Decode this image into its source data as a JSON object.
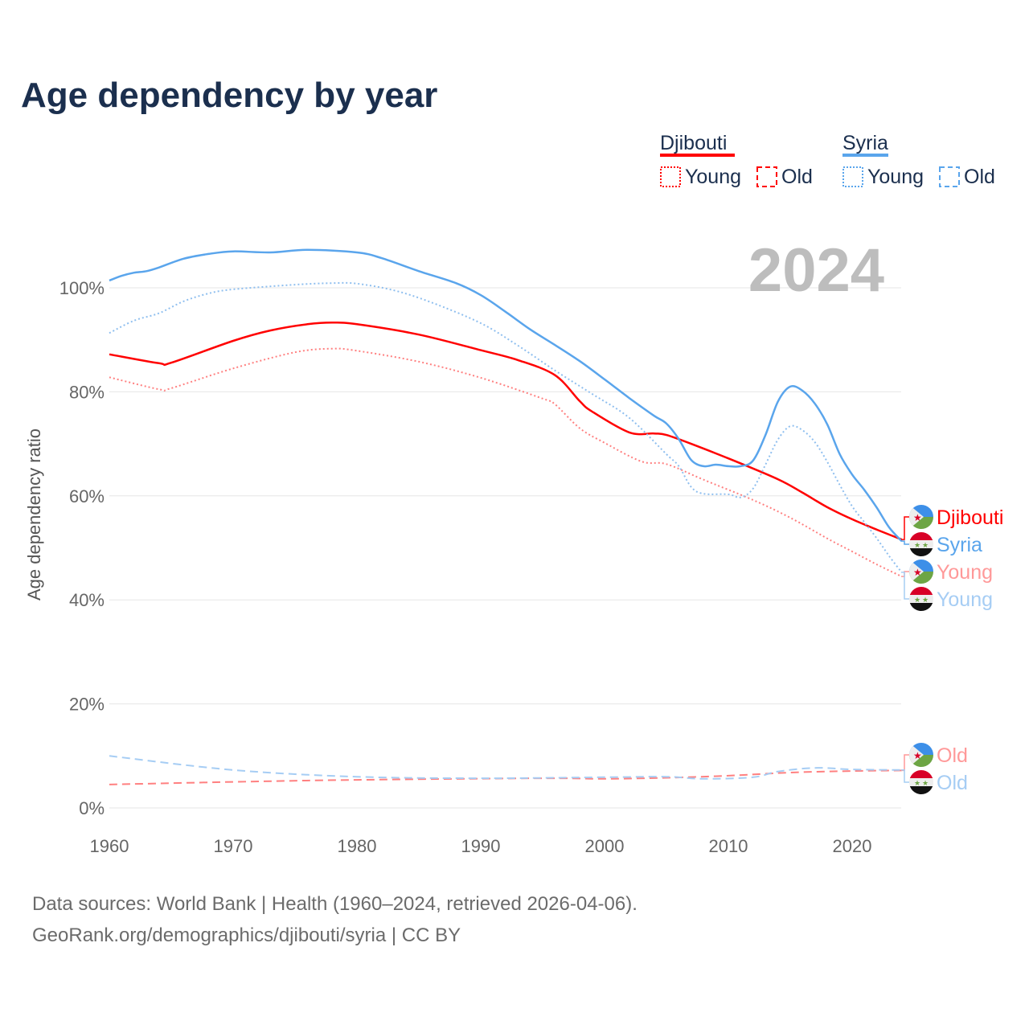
{
  "chart_data": {
    "type": "line",
    "title": "Age dependency by year",
    "ylabel": "Age dependency ratio",
    "xlabel": "",
    "xlim": [
      1960,
      2024
    ],
    "ylim": [
      0,
      110
    ],
    "x_ticks": [
      "1960",
      "1970",
      "1980",
      "1990",
      "2000",
      "2010",
      "2020"
    ],
    "y_ticks": [
      "0%",
      "20%",
      "40%",
      "60%",
      "80%",
      "100%"
    ],
    "grid": true,
    "year_label": "2024",
    "legend": {
      "groups": [
        {
          "country": "Djibouti",
          "color": "#ff0000",
          "items": [
            "Young",
            "Old"
          ]
        },
        {
          "country": "Syria",
          "color": "#5aa5ec",
          "items": [
            "Young",
            "Old"
          ]
        }
      ]
    },
    "series": [
      {
        "name": "Djibouti",
        "end_label": "Djibouti",
        "color": "#ff0000",
        "style": "solid",
        "flag": "djibouti",
        "x": [
          1960,
          1964,
          1965,
          1970,
          1973,
          1976,
          1978,
          1980,
          1985,
          1990,
          1993,
          1996,
          1998,
          1999,
          2002,
          2004,
          2005,
          2007,
          2010,
          2014,
          2016,
          2018,
          2020,
          2022,
          2024
        ],
        "y": [
          87.2,
          85.5,
          85.6,
          89.8,
          91.8,
          93.0,
          93.3,
          93.0,
          91.0,
          88.0,
          86.1,
          83.2,
          78.2,
          76.2,
          72.2,
          72.0,
          71.7,
          70.0,
          67.2,
          63.2,
          60.6,
          57.8,
          55.5,
          53.5,
          51.6
        ]
      },
      {
        "name": "Syria",
        "end_label": "Syria",
        "color": "#5aa5ec",
        "style": "solid",
        "flag": "syria",
        "x": [
          1960,
          1961,
          1962,
          1963,
          1964,
          1966,
          1968,
          1970,
          1973,
          1976,
          1980,
          1982,
          1985,
          1988,
          1990,
          1992,
          1994,
          1996,
          1998,
          2000,
          2002,
          2004,
          2005,
          2006,
          2007,
          2008,
          2009,
          2010,
          2011,
          2012,
          2013,
          2014,
          2015,
          2016,
          2017,
          2018,
          2019,
          2020,
          2021,
          2022,
          2023,
          2024
        ],
        "y": [
          101.4,
          102.3,
          102.9,
          103.2,
          103.9,
          105.6,
          106.5,
          107.0,
          106.8,
          107.3,
          106.8,
          105.7,
          103.2,
          100.9,
          98.6,
          95.4,
          92.0,
          89.0,
          85.9,
          82.4,
          78.8,
          75.4,
          73.9,
          70.9,
          66.9,
          65.7,
          66.0,
          65.7,
          65.7,
          66.8,
          71.7,
          78.1,
          81.0,
          80.2,
          77.7,
          73.7,
          68.0,
          64.1,
          61.1,
          57.7,
          53.9,
          51.3
        ]
      },
      {
        "name": "Djibouti Young",
        "end_label": "Young",
        "color": "#ff9999",
        "line_color": "#ff8080",
        "style": "dotted",
        "flag": "djibouti",
        "x": [
          1960,
          1964,
          1965,
          1970,
          1975,
          1978,
          1980,
          1985,
          1990,
          1995,
          1996,
          1998,
          2000,
          2003,
          2005,
          2008,
          2012,
          2015,
          2018,
          2020,
          2022,
          2024
        ],
        "y": [
          82.8,
          80.5,
          80.7,
          84.5,
          87.6,
          88.3,
          87.9,
          85.8,
          82.7,
          78.7,
          77.6,
          73.0,
          70.2,
          66.6,
          66.1,
          63.1,
          59.2,
          55.8,
          51.8,
          49.3,
          46.8,
          44.5
        ]
      },
      {
        "name": "Syria Young",
        "end_label": "Young",
        "color": "#a6cdf4",
        "line_color": "#8fbfef",
        "style": "dotted",
        "flag": "syria",
        "x": [
          1960,
          1962,
          1964,
          1966,
          1968,
          1970,
          1975,
          1978,
          1980,
          1983,
          1986,
          1990,
          1993,
          1996,
          1999,
          2002,
          2005,
          2006,
          2007,
          2008,
          2010,
          2011,
          2012,
          2013,
          2014,
          2015,
          2016,
          2017,
          2018,
          2019,
          2020,
          2021,
          2022,
          2023,
          2024
        ],
        "y": [
          91.3,
          93.7,
          95.1,
          97.4,
          98.9,
          99.7,
          100.6,
          100.9,
          100.8,
          99.5,
          97.2,
          93.2,
          88.9,
          84.1,
          79.6,
          75.0,
          68.0,
          65.7,
          61.7,
          60.4,
          60.3,
          59.7,
          61.4,
          66.0,
          70.8,
          73.4,
          72.6,
          70.3,
          66.5,
          62.1,
          58.0,
          54.9,
          51.8,
          48.4,
          45.3
        ]
      },
      {
        "name": "Djibouti Old",
        "end_label": "Old",
        "color": "#ff9999",
        "line_color": "#ff8080",
        "style": "dashed",
        "flag": "djibouti",
        "x": [
          1960,
          1970,
          1980,
          1995,
          2000,
          2005,
          2010,
          2015,
          2020,
          2024
        ],
        "y": [
          4.5,
          5.0,
          5.4,
          5.7,
          5.6,
          5.8,
          6.2,
          6.8,
          7.1,
          7.2
        ]
      },
      {
        "name": "Syria Old",
        "end_label": "Old",
        "color": "#a6cdf4",
        "line_color": "#a6cdf4",
        "style": "dashed",
        "flag": "syria",
        "x": [
          1960,
          1970,
          1980,
          1990,
          2000,
          2005,
          2008,
          2012,
          2014,
          2017,
          2020,
          2024
        ],
        "y": [
          10.0,
          7.3,
          6.0,
          5.7,
          5.9,
          6.0,
          5.6,
          5.9,
          7.0,
          7.7,
          7.4,
          7.3
        ]
      }
    ]
  },
  "footer": {
    "line1": "Data sources: World Bank | Health (1960–2024, retrieved 2026-04-06).",
    "line2": "GeoRank.org/demographics/djibouti/syria | CC BY"
  }
}
